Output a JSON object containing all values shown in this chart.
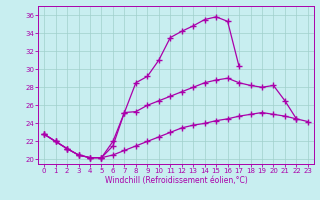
{
  "xlabel": "Windchill (Refroidissement éolien,°C)",
  "xlim": [
    -0.5,
    23.5
  ],
  "ylim": [
    19.5,
    37.0
  ],
  "yticks": [
    20,
    22,
    24,
    26,
    28,
    30,
    32,
    34,
    36
  ],
  "xticks": [
    0,
    1,
    2,
    3,
    4,
    5,
    6,
    7,
    8,
    9,
    10,
    11,
    12,
    13,
    14,
    15,
    16,
    17,
    18,
    19,
    20,
    21,
    22,
    23
  ],
  "bg_color": "#c8eef0",
  "grid_color": "#a0d0cc",
  "line_color": "#aa00aa",
  "line1_y": [
    22.8,
    22.0,
    21.2,
    20.5,
    20.2,
    20.2,
    22.0,
    25.2,
    28.5,
    29.2,
    31.0,
    33.5,
    34.2,
    34.8,
    35.5,
    35.8,
    35.3,
    30.3,
    null,
    null,
    null,
    null,
    null,
    null
  ],
  "line2_y": [
    22.8,
    22.0,
    21.2,
    20.5,
    20.2,
    20.2,
    21.5,
    25.2,
    25.3,
    26.0,
    26.5,
    27.0,
    27.5,
    28.0,
    28.5,
    28.8,
    29.0,
    28.5,
    28.2,
    28.0,
    28.2,
    26.5,
    24.5,
    null
  ],
  "line3_y": [
    22.8,
    22.0,
    21.2,
    20.5,
    20.2,
    20.2,
    20.5,
    21.0,
    21.5,
    22.0,
    22.5,
    23.0,
    23.5,
    23.8,
    24.0,
    24.3,
    24.5,
    24.8,
    25.0,
    25.2,
    25.0,
    24.8,
    24.5,
    24.2
  ]
}
